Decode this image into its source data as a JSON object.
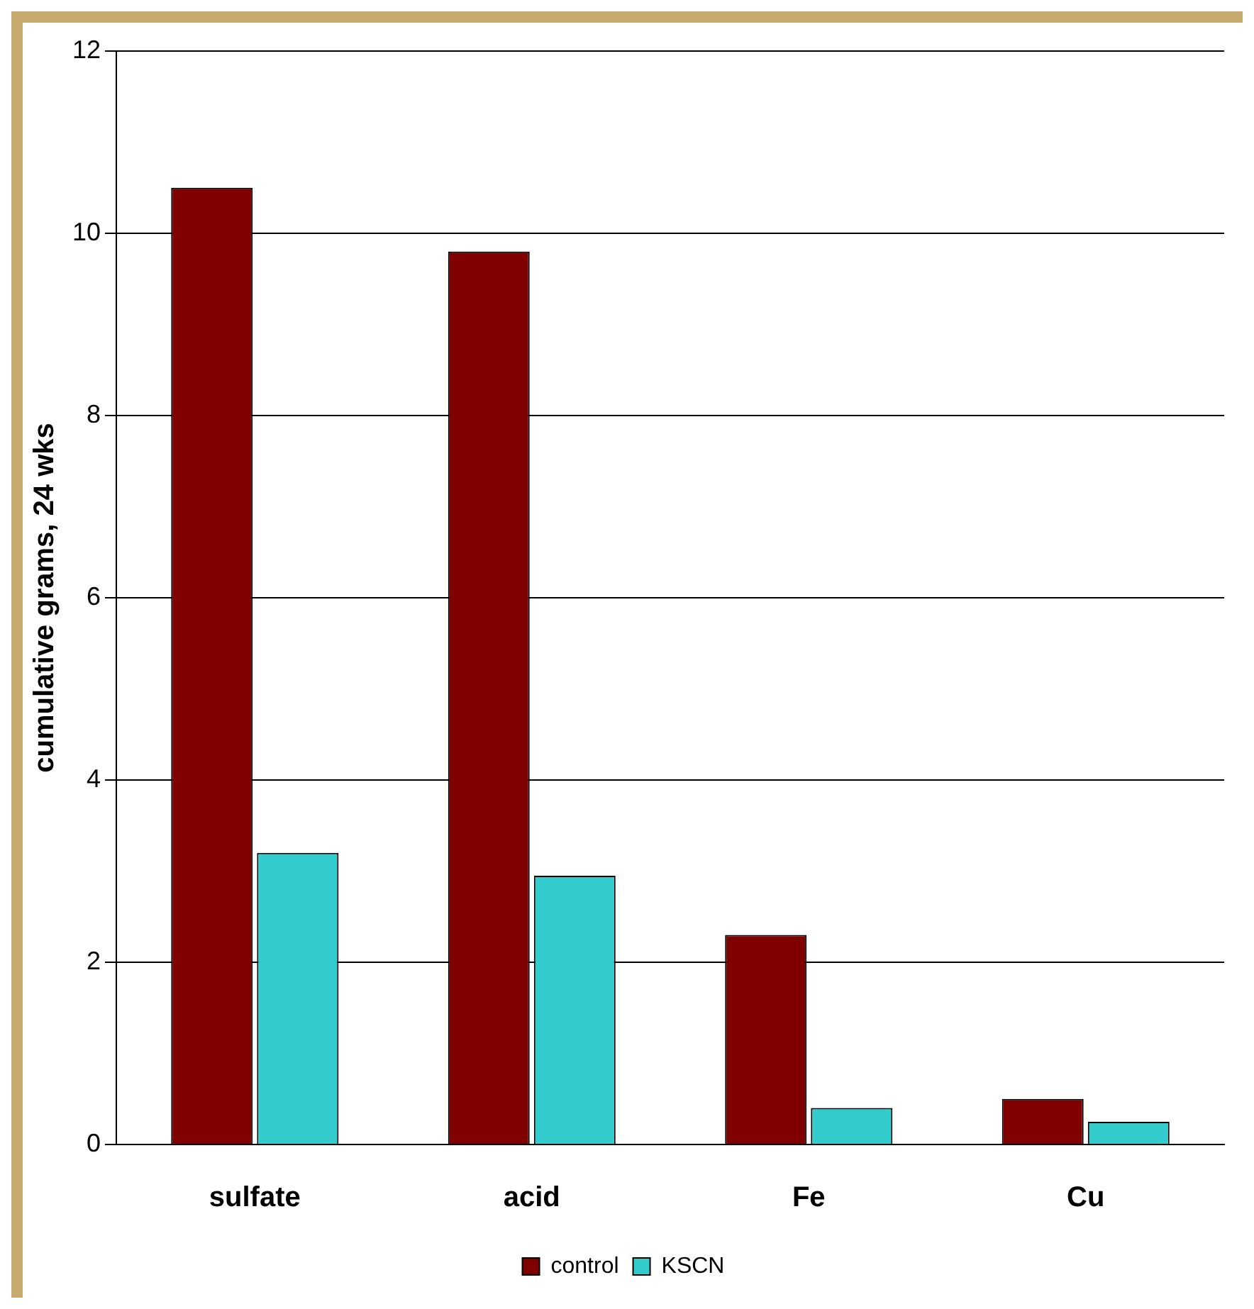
{
  "chart_data": {
    "type": "bar",
    "ylabel": "cumulative grams, 24 wks",
    "categories": [
      "sulfate",
      "acid",
      "Fe",
      "Cu"
    ],
    "series": [
      {
        "name": "control",
        "color": "#800000",
        "values": [
          10.5,
          9.8,
          2.3,
          0.5
        ]
      },
      {
        "name": "KSCN",
        "color": "#33cccc",
        "values": [
          3.2,
          2.95,
          0.4,
          0.25
        ]
      }
    ],
    "ylim": [
      0,
      12
    ],
    "yticks": [
      0,
      2,
      4,
      6,
      8,
      10,
      12
    ],
    "grid": "y",
    "legend": "bottom"
  }
}
